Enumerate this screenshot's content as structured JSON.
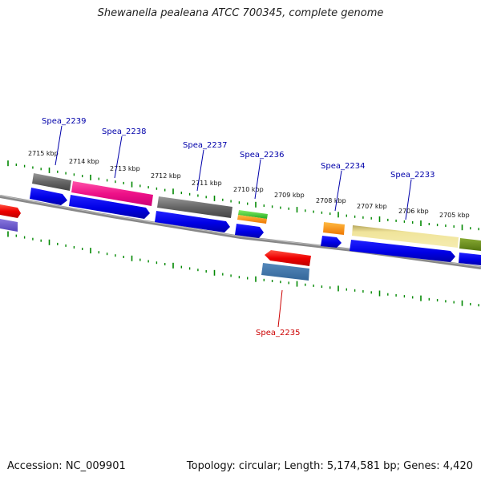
{
  "title": "Shewanella pealeana ATCC 700345, complete genome",
  "accession": "Accession: NC_009901",
  "genome_info": "Topology: circular; Length: 5,174,581 bp; Genes: 4,420",
  "ruler_labels": [
    "2715 kbp",
    "2714 kbp",
    "2713 kbp",
    "2712 kbp",
    "2711 kbp",
    "2710 kbp",
    "2709 kbp",
    "2708 kbp",
    "2707 kbp",
    "2706 kbp",
    "2705 kbp"
  ],
  "gene_labels": [
    "Spea_2239",
    "Spea_2238",
    "Spea_2237",
    "Spea_2236",
    "Spea_2234",
    "Spea_2233",
    "Spea_2235"
  ],
  "colors": {
    "label_forward": "#0000aa",
    "label_reverse": "#cc0000",
    "tick": "#008800",
    "backbone": "#888888",
    "cds": "#0000ee",
    "gray_feature": "#666666",
    "magenta_feature": "#ee1188",
    "green_feature": "#33bb33",
    "orange_feature": "#ff8800",
    "khaki_feature": "#eee08a",
    "olive_feature": "#668811",
    "red_feature": "#ee0000",
    "steel_feature": "#4477aa",
    "purple_feature": "#6655cc"
  }
}
